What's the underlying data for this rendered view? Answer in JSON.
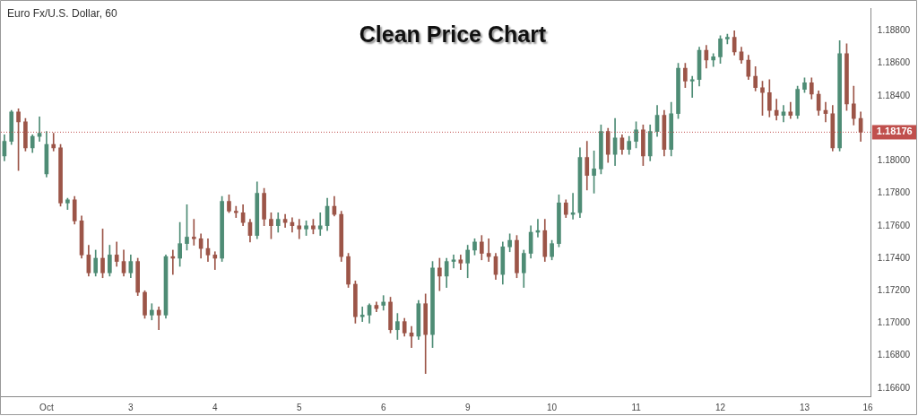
{
  "chart_data": {
    "type": "candlestick",
    "title": "Clean Price Chart",
    "subtitle": "Euro Fx/U.S. Dollar, 60",
    "categories": [
      null,
      null,
      null,
      null,
      null,
      null,
      "Oct",
      null,
      null,
      null,
      null,
      null,
      null,
      null,
      null,
      null,
      null,
      null,
      "3",
      null,
      null,
      null,
      null,
      null,
      null,
      null,
      null,
      null,
      null,
      null,
      "4",
      null,
      null,
      null,
      null,
      null,
      null,
      null,
      null,
      null,
      null,
      null,
      "5",
      null,
      null,
      null,
      null,
      null,
      null,
      null,
      null,
      null,
      null,
      null,
      "6",
      null,
      null,
      null,
      null,
      null,
      null,
      null,
      null,
      null,
      null,
      null,
      "9",
      null,
      null,
      null,
      null,
      null,
      null,
      null,
      null,
      null,
      null,
      null,
      "10",
      null,
      null,
      null,
      null,
      null,
      null,
      null,
      null,
      null,
      null,
      null,
      "11",
      null,
      null,
      null,
      null,
      null,
      null,
      null,
      null,
      null,
      null,
      null,
      "12",
      null,
      null,
      null,
      null,
      null,
      null,
      null,
      null,
      null,
      null,
      null,
      "13",
      null,
      null,
      null,
      null,
      null,
      null,
      null,
      null,
      "16"
    ],
    "ohlc": [
      [
        1.1803,
        1.1816,
        1.18,
        1.1812
      ],
      [
        1.1812,
        1.1831,
        1.181,
        1.183
      ],
      [
        1.183,
        1.1832,
        1.1794,
        1.1824
      ],
      [
        1.1824,
        1.1826,
        1.1806,
        1.1808
      ],
      [
        1.1808,
        1.1816,
        1.1805,
        1.1815
      ],
      [
        1.1815,
        1.1827,
        1.1812,
        1.1817
      ],
      [
        1.1792,
        1.1818,
        1.179,
        1.181
      ],
      [
        1.181,
        1.1817,
        1.1806,
        1.1808
      ],
      [
        1.1808,
        1.181,
        1.1772,
        1.1774
      ],
      [
        1.1774,
        1.1777,
        1.177,
        1.1776
      ],
      [
        1.1776,
        1.1778,
        1.1761,
        1.1763
      ],
      [
        1.1763,
        1.1766,
        1.174,
        1.1742
      ],
      [
        1.1742,
        1.1748,
        1.1729,
        1.1731
      ],
      [
        1.1731,
        1.1745,
        1.1729,
        1.174
      ],
      [
        1.174,
        1.1758,
        1.1728,
        1.1731
      ],
      [
        1.1731,
        1.1748,
        1.1729,
        1.1742
      ],
      [
        1.1742,
        1.175,
        1.1735,
        1.1738
      ],
      [
        1.1738,
        1.1745,
        1.1729,
        1.1731
      ],
      [
        1.1731,
        1.1742,
        1.1728,
        1.1738
      ],
      [
        1.1738,
        1.174,
        1.1717,
        1.1719
      ],
      [
        1.1719,
        1.172,
        1.1703,
        1.1705
      ],
      [
        1.1705,
        1.1712,
        1.1702,
        1.1708
      ],
      [
        1.1708,
        1.171,
        1.1696,
        1.1705
      ],
      [
        1.1705,
        1.1742,
        1.1703,
        1.1741
      ],
      [
        1.1741,
        1.1745,
        1.173,
        1.174
      ],
      [
        1.174,
        1.1762,
        1.1735,
        1.1749
      ],
      [
        1.1749,
        1.1773,
        1.1745,
        1.1753
      ],
      [
        1.1753,
        1.1764,
        1.1748,
        1.1752
      ],
      [
        1.1752,
        1.1755,
        1.174,
        1.1746
      ],
      [
        1.1746,
        1.1752,
        1.1738,
        1.1742
      ],
      [
        1.1742,
        1.1744,
        1.1733,
        1.174
      ],
      [
        1.174,
        1.1778,
        1.1738,
        1.1775
      ],
      [
        1.1775,
        1.1779,
        1.1768,
        1.1769
      ],
      [
        1.1769,
        1.1772,
        1.1765,
        1.1768
      ],
      [
        1.1768,
        1.1773,
        1.176,
        1.1762
      ],
      [
        1.1762,
        1.1764,
        1.175,
        1.1754
      ],
      [
        1.1754,
        1.1787,
        1.1752,
        1.178
      ],
      [
        1.178,
        1.1783,
        1.176,
        1.1764
      ],
      [
        1.1764,
        1.1768,
        1.1752,
        1.176
      ],
      [
        1.176,
        1.1768,
        1.1756,
        1.1764
      ],
      [
        1.1764,
        1.1767,
        1.1759,
        1.1762
      ],
      [
        1.1762,
        1.1765,
        1.1756,
        1.176
      ],
      [
        1.176,
        1.1764,
        1.1752,
        1.1758
      ],
      [
        1.1758,
        1.1763,
        1.1754,
        1.176
      ],
      [
        1.176,
        1.1764,
        1.1755,
        1.1758
      ],
      [
        1.1758,
        1.1768,
        1.1754,
        1.176
      ],
      [
        1.176,
        1.1777,
        1.1757,
        1.1772
      ],
      [
        1.1772,
        1.1778,
        1.1766,
        1.1767
      ],
      [
        1.1767,
        1.1769,
        1.1738,
        1.1741
      ],
      [
        1.1741,
        1.1743,
        1.1722,
        1.1724
      ],
      [
        1.1724,
        1.1726,
        1.17,
        1.1704
      ],
      [
        1.1704,
        1.171,
        1.1701,
        1.1705
      ],
      [
        1.1705,
        1.1712,
        1.17,
        1.1711
      ],
      [
        1.1711,
        1.1713,
        1.1707,
        1.1709
      ],
      [
        1.1711,
        1.1717,
        1.1708,
        1.1713
      ],
      [
        1.1713,
        1.1716,
        1.1694,
        1.1696
      ],
      [
        1.1696,
        1.1706,
        1.169,
        1.1701
      ],
      [
        1.1701,
        1.1703,
        1.1692,
        1.1694
      ],
      [
        1.1694,
        1.1698,
        1.1685,
        1.1692
      ],
      [
        1.1692,
        1.1714,
        1.169,
        1.1712
      ],
      [
        1.1712,
        1.1718,
        1.1669,
        1.1693
      ],
      [
        1.1693,
        1.1738,
        1.1685,
        1.1734
      ],
      [
        1.1734,
        1.174,
        1.172,
        1.1729
      ],
      [
        1.1729,
        1.174,
        1.1722,
        1.1738
      ],
      [
        1.1738,
        1.1742,
        1.1734,
        1.1739
      ],
      [
        1.1739,
        1.1742,
        1.1733,
        1.1737
      ],
      [
        1.1737,
        1.1748,
        1.1728,
        1.1745
      ],
      [
        1.1745,
        1.1752,
        1.1742,
        1.175
      ],
      [
        1.175,
        1.1754,
        1.1739,
        1.1743
      ],
      [
        1.1743,
        1.1752,
        1.1738,
        1.1741
      ],
      [
        1.1741,
        1.1743,
        1.1727,
        1.173
      ],
      [
        1.173,
        1.175,
        1.1724,
        1.1747
      ],
      [
        1.1747,
        1.1755,
        1.1744,
        1.1751
      ],
      [
        1.1751,
        1.1754,
        1.1728,
        1.1731
      ],
      [
        1.1731,
        1.1745,
        1.1722,
        1.1743
      ],
      [
        1.1743,
        1.176,
        1.174,
        1.1756
      ],
      [
        1.1756,
        1.1764,
        1.1753,
        1.1757
      ],
      [
        1.1757,
        1.1764,
        1.1738,
        1.1741
      ],
      [
        1.1741,
        1.1751,
        1.1739,
        1.1749
      ],
      [
        1.1749,
        1.1779,
        1.1747,
        1.1774
      ],
      [
        1.1774,
        1.1776,
        1.1765,
        1.1767
      ],
      [
        1.1767,
        1.178,
        1.1764,
        1.1768
      ],
      [
        1.1768,
        1.1808,
        1.1765,
        1.1802
      ],
      [
        1.1802,
        1.1812,
        1.1782,
        1.1791
      ],
      [
        1.1791,
        1.1806,
        1.178,
        1.1795
      ],
      [
        1.1795,
        1.1822,
        1.1792,
        1.1818
      ],
      [
        1.1818,
        1.182,
        1.1799,
        1.1804
      ],
      [
        1.1804,
        1.1826,
        1.1797,
        1.1814
      ],
      [
        1.1814,
        1.1816,
        1.1804,
        1.1807
      ],
      [
        1.1807,
        1.1815,
        1.1804,
        1.1812
      ],
      [
        1.1812,
        1.1824,
        1.1808,
        1.1819
      ],
      [
        1.1819,
        1.1822,
        1.1797,
        1.1803
      ],
      [
        1.1803,
        1.1822,
        1.18,
        1.1818
      ],
      [
        1.1818,
        1.1834,
        1.1815,
        1.1828
      ],
      [
        1.1828,
        1.1831,
        1.1803,
        1.1807
      ],
      [
        1.1807,
        1.1836,
        1.1803,
        1.1829
      ],
      [
        1.1829,
        1.186,
        1.1826,
        1.1857
      ],
      [
        1.1857,
        1.186,
        1.1845,
        1.1849
      ],
      [
        1.1849,
        1.1852,
        1.1839,
        1.185
      ],
      [
        1.185,
        1.187,
        1.1846,
        1.1868
      ],
      [
        1.1868,
        1.1871,
        1.1857,
        1.1862
      ],
      [
        1.1862,
        1.1866,
        1.1858,
        1.1864
      ],
      [
        1.1864,
        1.1877,
        1.186,
        1.1875
      ],
      [
        1.1875,
        1.1878,
        1.1872,
        1.1876
      ],
      [
        1.1876,
        1.188,
        1.1865,
        1.1867
      ],
      [
        1.1867,
        1.187,
        1.186,
        1.1862
      ],
      [
        1.1862,
        1.1865,
        1.185,
        1.1852
      ],
      [
        1.1852,
        1.1858,
        1.1843,
        1.1845
      ],
      [
        1.1845,
        1.1849,
        1.1828,
        1.1842
      ],
      [
        1.1842,
        1.185,
        1.1827,
        1.1831
      ],
      [
        1.1831,
        1.1838,
        1.1825,
        1.1828
      ],
      [
        1.1828,
        1.1834,
        1.1824,
        1.183
      ],
      [
        1.183,
        1.1836,
        1.1826,
        1.1828
      ],
      [
        1.1828,
        1.1846,
        1.1826,
        1.1844
      ],
      [
        1.1844,
        1.1851,
        1.1842,
        1.1848
      ],
      [
        1.1848,
        1.1851,
        1.1838,
        1.1841
      ],
      [
        1.1841,
        1.1843,
        1.1828,
        1.1831
      ],
      [
        1.1831,
        1.1836,
        1.1824,
        1.1829
      ],
      [
        1.1829,
        1.1834,
        1.1806,
        1.1808
      ],
      [
        1.1808,
        1.1874,
        1.1806,
        1.1866
      ],
      [
        1.1866,
        1.1872,
        1.1831,
        1.1835
      ],
      [
        1.1835,
        1.1846,
        1.1822,
        1.1826
      ],
      [
        1.1826,
        1.183,
        1.1812,
        1.18176
      ],
      null
    ],
    "ylim": [
      1.1655,
      1.1894
    ],
    "yticks": [
      {
        "value": 1.166,
        "label": "1.16600"
      },
      {
        "value": 1.168,
        "label": "1.16800"
      },
      {
        "value": 1.17,
        "label": "1.17000"
      },
      {
        "value": 1.172,
        "label": "1.17200"
      },
      {
        "value": 1.174,
        "label": "1.17400"
      },
      {
        "value": 1.176,
        "label": "1.17600"
      },
      {
        "value": 1.178,
        "label": "1.17800"
      },
      {
        "value": 1.18,
        "label": "1.18000"
      },
      {
        "value": 1.184,
        "label": "1.18400"
      },
      {
        "value": 1.186,
        "label": "1.18600"
      },
      {
        "value": 1.188,
        "label": "1.18800"
      }
    ],
    "ref_lines": [
      {
        "axis": "y",
        "value": 1.18176,
        "label": "1.18176",
        "color": "#c0504d",
        "line_style": "dotted"
      }
    ],
    "grid": false,
    "legend": false
  }
}
